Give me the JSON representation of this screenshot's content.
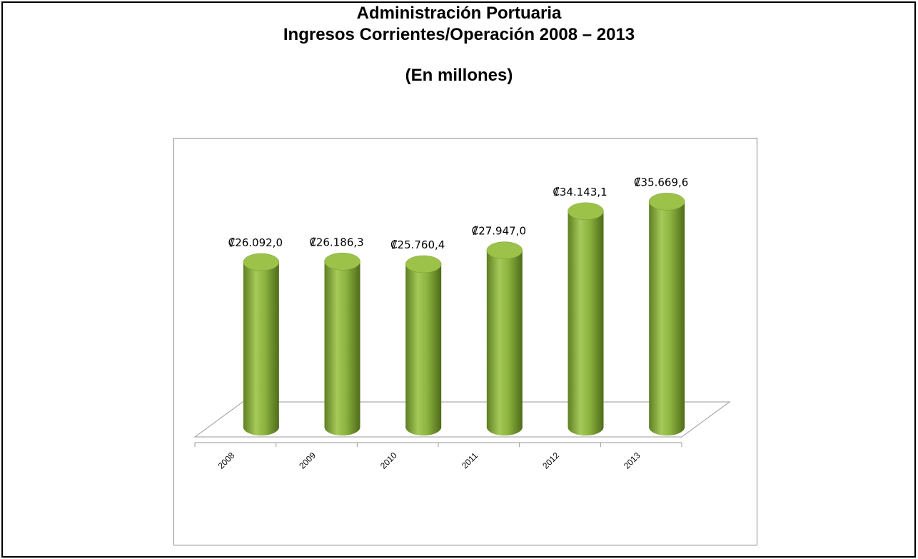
{
  "chart_data": {
    "type": "cylinder",
    "title": "Administración Portuaria",
    "subtitle": "Ingresos Corrientes/Operación 2008 – 2013",
    "note": "(En millones)",
    "categories": [
      "2008",
      "2009",
      "2010",
      "2011",
      "2012",
      "2013"
    ],
    "values": [
      26092.0,
      26186.3,
      25760.4,
      27947.0,
      34143.1,
      35669.6
    ],
    "value_labels": [
      "₡26.092,0",
      "₡26.186,3",
      "₡25.760,4",
      "₡27.947,0",
      "₡34.143,1",
      "₡35.669,6"
    ],
    "color": "#8db33f"
  }
}
